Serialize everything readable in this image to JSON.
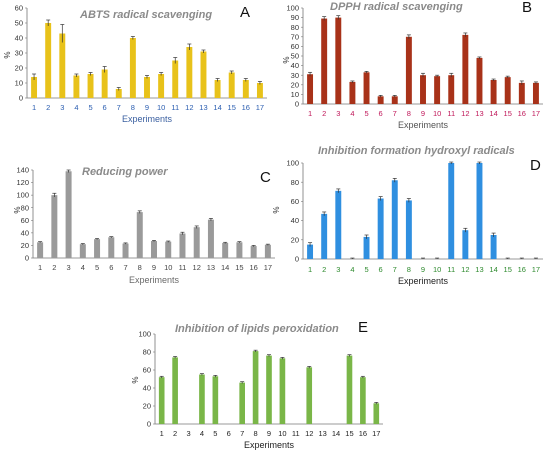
{
  "chart_data": [
    {
      "type": "bar",
      "panel_letter": "A",
      "title": "ABTS radical scavenging",
      "xlabel": "Experiments",
      "ylabel": "%",
      "ylim": [
        0,
        60
      ],
      "yticks": [
        0,
        10,
        20,
        30,
        40,
        50,
        60
      ],
      "color": "#e8c21a",
      "categories": [
        "1",
        "2",
        "3",
        "4",
        "5",
        "6",
        "7",
        "8",
        "9",
        "10",
        "11",
        "12",
        "13",
        "14",
        "15",
        "16",
        "17"
      ],
      "values": [
        14,
        50,
        43,
        15,
        16,
        19,
        6,
        40,
        14,
        16,
        25,
        34,
        31,
        12,
        17,
        12,
        10
      ],
      "errors": [
        2,
        2,
        6,
        1,
        1,
        2,
        1,
        1,
        1,
        1,
        2,
        2,
        1,
        1,
        1,
        1,
        1
      ]
    },
    {
      "type": "bar",
      "panel_letter": "B",
      "title": "DPPH radical scavenging",
      "xlabel": "Experiments",
      "ylabel": "%",
      "ylim": [
        0,
        100
      ],
      "yticks": [
        0,
        10,
        20,
        30,
        40,
        50,
        60,
        70,
        80,
        90,
        100
      ],
      "color": "#a83219",
      "categories": [
        "1",
        "2",
        "3",
        "4",
        "5",
        "6",
        "7",
        "8",
        "9",
        "10",
        "11",
        "12",
        "13",
        "14",
        "15",
        "16",
        "17"
      ],
      "values": [
        31,
        89,
        90,
        23,
        33,
        8,
        8,
        70,
        30,
        29,
        30,
        72,
        48,
        25,
        28,
        22,
        22
      ],
      "errors": [
        2,
        2,
        2,
        1,
        1,
        1,
        1,
        2,
        2,
        1,
        2,
        2,
        1,
        1,
        1,
        2,
        1
      ]
    },
    {
      "type": "bar",
      "panel_letter": "C",
      "title": "Reducing power",
      "xlabel": "Experiments",
      "ylabel": "%",
      "ylim": [
        0,
        140
      ],
      "yticks": [
        0,
        20,
        40,
        60,
        80,
        100,
        120,
        140
      ],
      "color": "#9a9a9a",
      "categories": [
        "1",
        "2",
        "3",
        "4",
        "5",
        "6",
        "7",
        "8",
        "9",
        "10",
        "11",
        "12",
        "13",
        "14",
        "15",
        "16",
        "17"
      ],
      "values": [
        25,
        100,
        138,
        22,
        30,
        33,
        23,
        73,
        27,
        26,
        39,
        49,
        61,
        24,
        25,
        19,
        21
      ],
      "errors": [
        1,
        3,
        2,
        1,
        1,
        1,
        1,
        2,
        1,
        1,
        2,
        2,
        2,
        1,
        1,
        1,
        1
      ]
    },
    {
      "type": "bar",
      "panel_letter": "D",
      "title": "Inhibition formation hydroxyl radicals",
      "xlabel": "Experiments",
      "ylabel": "%",
      "ylim": [
        0,
        100
      ],
      "yticks": [
        0,
        20,
        40,
        60,
        80,
        100
      ],
      "color": "#2f8fe0",
      "categories": [
        "1",
        "2",
        "3",
        "4",
        "5",
        "6",
        "7",
        "8",
        "9",
        "10",
        "11",
        "12",
        "13",
        "14",
        "15",
        "16",
        "17"
      ],
      "values": [
        15,
        47,
        71,
        0,
        23,
        63,
        82,
        61,
        0,
        0,
        100,
        30,
        100,
        25,
        0,
        0,
        0
      ],
      "errors": [
        2,
        2,
        2,
        1,
        2,
        2,
        2,
        2,
        1,
        1,
        1,
        2,
        1,
        2,
        1,
        1,
        1
      ]
    },
    {
      "type": "bar",
      "panel_letter": "E",
      "title": "Inhibition of lipids peroxidation",
      "xlabel": "Experiments",
      "ylabel": "%",
      "ylim": [
        0,
        100
      ],
      "yticks": [
        0,
        20,
        40,
        60,
        80,
        100
      ],
      "color": "#7ab648",
      "categories": [
        "1",
        "2",
        "3",
        "4",
        "5",
        "6",
        "7",
        "8",
        "9",
        "10",
        "11",
        "12",
        "13",
        "14",
        "15",
        "16",
        "17"
      ],
      "values": [
        52,
        74,
        0,
        55,
        53,
        0,
        46,
        81,
        76,
        73,
        0,
        63,
        0,
        0,
        76,
        52,
        23
      ],
      "errors": [
        1,
        1,
        0,
        1,
        1,
        0,
        1,
        1,
        1,
        1,
        0,
        1,
        0,
        0,
        1,
        1,
        1
      ]
    }
  ]
}
